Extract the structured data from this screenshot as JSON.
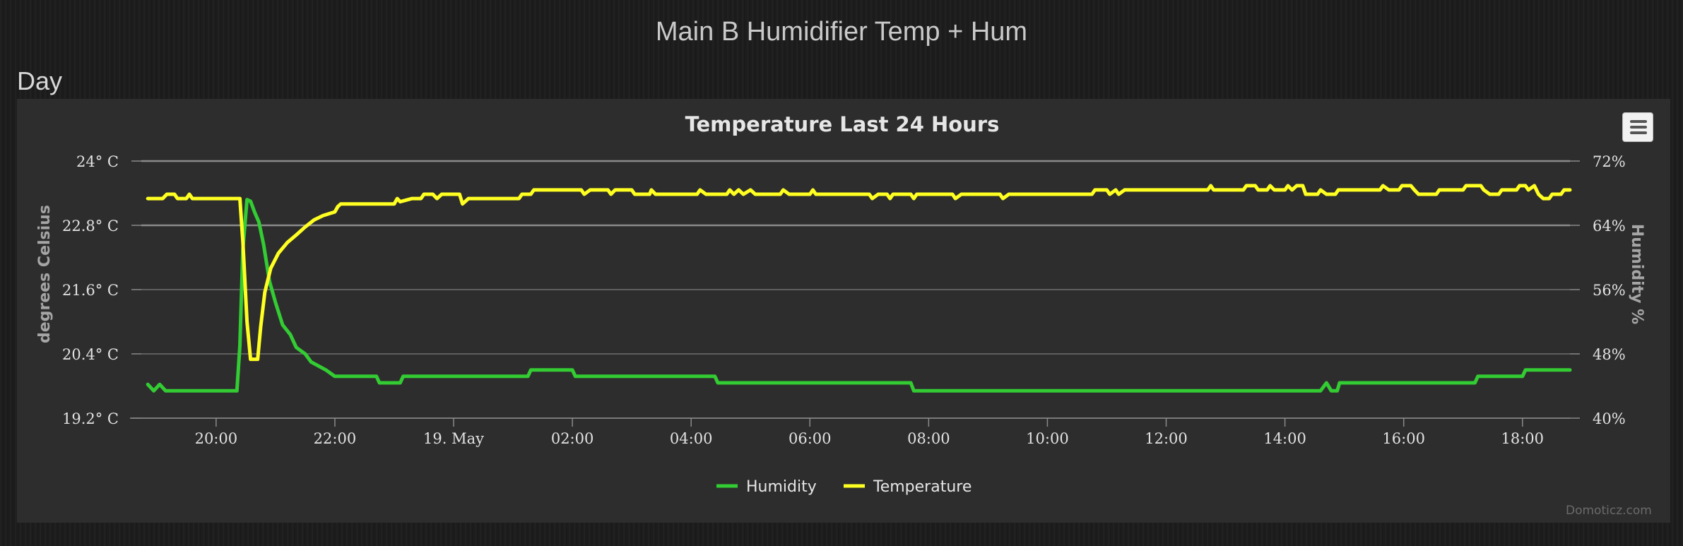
{
  "header": {
    "title": "Main B Humidifier Temp + Hum"
  },
  "section": {
    "title": "Day"
  },
  "credits": "Domoticz.com",
  "colors": {
    "humidity": "#33cc33",
    "temperature": "#ffff22",
    "background": "#2d2d2d"
  },
  "icons": {
    "menu": "hamburger-menu-icon"
  },
  "chart_data": {
    "type": "line",
    "title": "Temperature Last 24 Hours",
    "y_left": {
      "label": "degrees Celsius",
      "ticks": [
        "24° C",
        "22.8° C",
        "21.6° C",
        "20.4° C",
        "19.2° C"
      ],
      "range": [
        19.2,
        24
      ]
    },
    "y_right": {
      "label": "Humidity %",
      "ticks": [
        "72%",
        "64%",
        "56%",
        "48%",
        "40%"
      ],
      "range": [
        40,
        72
      ]
    },
    "x_axis": {
      "ticks": [
        "20:00",
        "22:00",
        "19. May",
        "02:00",
        "04:00",
        "06:00",
        "08:00",
        "10:00",
        "12:00",
        "14:00",
        "16:00",
        "18:00"
      ],
      "range_hours": [
        18.55,
        42.8
      ]
    },
    "legend": {
      "position": "bottom-center"
    },
    "grid": true,
    "series": [
      {
        "name": "Humidity",
        "axis": "right",
        "points": [
          [
            18.85,
            44.2
          ],
          [
            18.95,
            43.4
          ],
          [
            19.05,
            44.2
          ],
          [
            19.15,
            43.4
          ],
          [
            20.35,
            43.4
          ],
          [
            20.4,
            49.0
          ],
          [
            20.45,
            61.0
          ],
          [
            20.52,
            67.2
          ],
          [
            20.58,
            67.0
          ],
          [
            20.65,
            65.6
          ],
          [
            20.72,
            64.4
          ],
          [
            20.8,
            61.6
          ],
          [
            20.9,
            57.0
          ],
          [
            21.0,
            54.4
          ],
          [
            21.12,
            51.6
          ],
          [
            21.25,
            50.4
          ],
          [
            21.35,
            48.8
          ],
          [
            21.5,
            48.0
          ],
          [
            21.6,
            47.0
          ],
          [
            21.85,
            46.0
          ],
          [
            22.0,
            45.2
          ],
          [
            22.7,
            45.2
          ],
          [
            22.75,
            44.4
          ],
          [
            23.1,
            44.4
          ],
          [
            23.15,
            45.2
          ],
          [
            25.25,
            45.2
          ],
          [
            25.3,
            46.0
          ],
          [
            26.0,
            46.0
          ],
          [
            26.05,
            45.2
          ],
          [
            28.4,
            45.2
          ],
          [
            28.45,
            44.4
          ],
          [
            31.7,
            44.4
          ],
          [
            31.75,
            43.4
          ],
          [
            38.6,
            43.4
          ],
          [
            38.7,
            44.4
          ],
          [
            38.78,
            43.4
          ],
          [
            38.88,
            43.4
          ],
          [
            38.92,
            44.4
          ],
          [
            41.2,
            44.4
          ],
          [
            41.25,
            45.2
          ],
          [
            42.0,
            45.2
          ],
          [
            42.05,
            46.0
          ],
          [
            42.8,
            46.0
          ]
        ]
      },
      {
        "name": "Temperature",
        "axis": "left",
        "points": [
          [
            18.85,
            23.3
          ],
          [
            19.1,
            23.3
          ],
          [
            19.17,
            23.38
          ],
          [
            19.3,
            23.38
          ],
          [
            19.35,
            23.3
          ],
          [
            19.5,
            23.3
          ],
          [
            19.55,
            23.38
          ],
          [
            19.6,
            23.3
          ],
          [
            20.4,
            23.3
          ],
          [
            20.45,
            22.5
          ],
          [
            20.52,
            21.0
          ],
          [
            20.58,
            20.3
          ],
          [
            20.7,
            20.3
          ],
          [
            20.75,
            20.9
          ],
          [
            20.82,
            21.55
          ],
          [
            20.92,
            22.0
          ],
          [
            21.05,
            22.28
          ],
          [
            21.2,
            22.48
          ],
          [
            21.35,
            22.62
          ],
          [
            21.5,
            22.77
          ],
          [
            21.65,
            22.9
          ],
          [
            21.8,
            22.98
          ],
          [
            22.0,
            23.05
          ],
          [
            22.05,
            23.15
          ],
          [
            22.1,
            23.2
          ],
          [
            23.0,
            23.2
          ],
          [
            23.05,
            23.3
          ],
          [
            23.1,
            23.24
          ],
          [
            23.3,
            23.3
          ],
          [
            23.45,
            23.3
          ],
          [
            23.5,
            23.38
          ],
          [
            23.65,
            23.38
          ],
          [
            23.72,
            23.3
          ],
          [
            23.8,
            23.38
          ],
          [
            24.1,
            23.38
          ],
          [
            24.15,
            23.2
          ],
          [
            24.25,
            23.3
          ],
          [
            25.1,
            23.3
          ],
          [
            25.15,
            23.38
          ],
          [
            25.3,
            23.38
          ],
          [
            25.35,
            23.46
          ],
          [
            26.15,
            23.46
          ],
          [
            26.2,
            23.38
          ],
          [
            26.3,
            23.46
          ],
          [
            26.6,
            23.46
          ],
          [
            26.65,
            23.38
          ],
          [
            26.72,
            23.46
          ],
          [
            27.0,
            23.46
          ],
          [
            27.05,
            23.38
          ],
          [
            27.3,
            23.38
          ],
          [
            27.33,
            23.46
          ],
          [
            27.4,
            23.38
          ],
          [
            28.1,
            23.38
          ],
          [
            28.15,
            23.46
          ],
          [
            28.25,
            23.38
          ],
          [
            28.6,
            23.38
          ],
          [
            28.65,
            23.46
          ],
          [
            28.72,
            23.38
          ],
          [
            28.8,
            23.46
          ],
          [
            28.88,
            23.38
          ],
          [
            29.0,
            23.46
          ],
          [
            29.08,
            23.38
          ],
          [
            29.5,
            23.38
          ],
          [
            29.55,
            23.46
          ],
          [
            29.65,
            23.38
          ],
          [
            30.0,
            23.38
          ],
          [
            30.05,
            23.46
          ],
          [
            30.1,
            23.38
          ],
          [
            31.0,
            23.38
          ],
          [
            31.05,
            23.3
          ],
          [
            31.15,
            23.38
          ],
          [
            31.3,
            23.38
          ],
          [
            31.35,
            23.3
          ],
          [
            31.4,
            23.38
          ],
          [
            31.7,
            23.38
          ],
          [
            31.75,
            23.3
          ],
          [
            31.8,
            23.38
          ],
          [
            32.4,
            23.38
          ],
          [
            32.45,
            23.3
          ],
          [
            32.55,
            23.38
          ],
          [
            33.2,
            23.38
          ],
          [
            33.25,
            23.3
          ],
          [
            33.35,
            23.38
          ],
          [
            34.75,
            23.38
          ],
          [
            34.8,
            23.46
          ],
          [
            35.0,
            23.46
          ],
          [
            35.05,
            23.38
          ],
          [
            35.15,
            23.46
          ],
          [
            35.2,
            23.38
          ],
          [
            35.3,
            23.46
          ],
          [
            36.7,
            23.46
          ],
          [
            36.75,
            23.54
          ],
          [
            36.8,
            23.46
          ],
          [
            37.3,
            23.46
          ],
          [
            37.35,
            23.54
          ],
          [
            37.5,
            23.54
          ],
          [
            37.55,
            23.46
          ],
          [
            37.7,
            23.46
          ],
          [
            37.75,
            23.54
          ],
          [
            37.82,
            23.46
          ],
          [
            38.0,
            23.46
          ],
          [
            38.05,
            23.54
          ],
          [
            38.12,
            23.46
          ],
          [
            38.2,
            23.54
          ],
          [
            38.3,
            23.54
          ],
          [
            38.35,
            23.38
          ],
          [
            38.55,
            23.38
          ],
          [
            38.6,
            23.46
          ],
          [
            38.7,
            23.38
          ],
          [
            38.85,
            23.38
          ],
          [
            38.9,
            23.46
          ],
          [
            39.6,
            23.46
          ],
          [
            39.65,
            23.54
          ],
          [
            39.75,
            23.46
          ],
          [
            39.92,
            23.46
          ],
          [
            39.97,
            23.54
          ],
          [
            40.12,
            23.54
          ],
          [
            40.18,
            23.46
          ],
          [
            40.25,
            23.38
          ],
          [
            40.55,
            23.38
          ],
          [
            40.6,
            23.46
          ],
          [
            41.0,
            23.46
          ],
          [
            41.05,
            23.54
          ],
          [
            41.3,
            23.54
          ],
          [
            41.35,
            23.46
          ],
          [
            41.45,
            23.38
          ],
          [
            41.6,
            23.38
          ],
          [
            41.65,
            23.46
          ],
          [
            41.9,
            23.46
          ],
          [
            41.95,
            23.54
          ],
          [
            42.05,
            23.54
          ],
          [
            42.1,
            23.46
          ],
          [
            42.2,
            23.54
          ],
          [
            42.27,
            23.38
          ],
          [
            42.35,
            23.3
          ],
          [
            42.45,
            23.3
          ],
          [
            42.5,
            23.38
          ],
          [
            42.65,
            23.38
          ],
          [
            42.7,
            23.46
          ],
          [
            42.8,
            23.46
          ]
        ]
      }
    ]
  }
}
